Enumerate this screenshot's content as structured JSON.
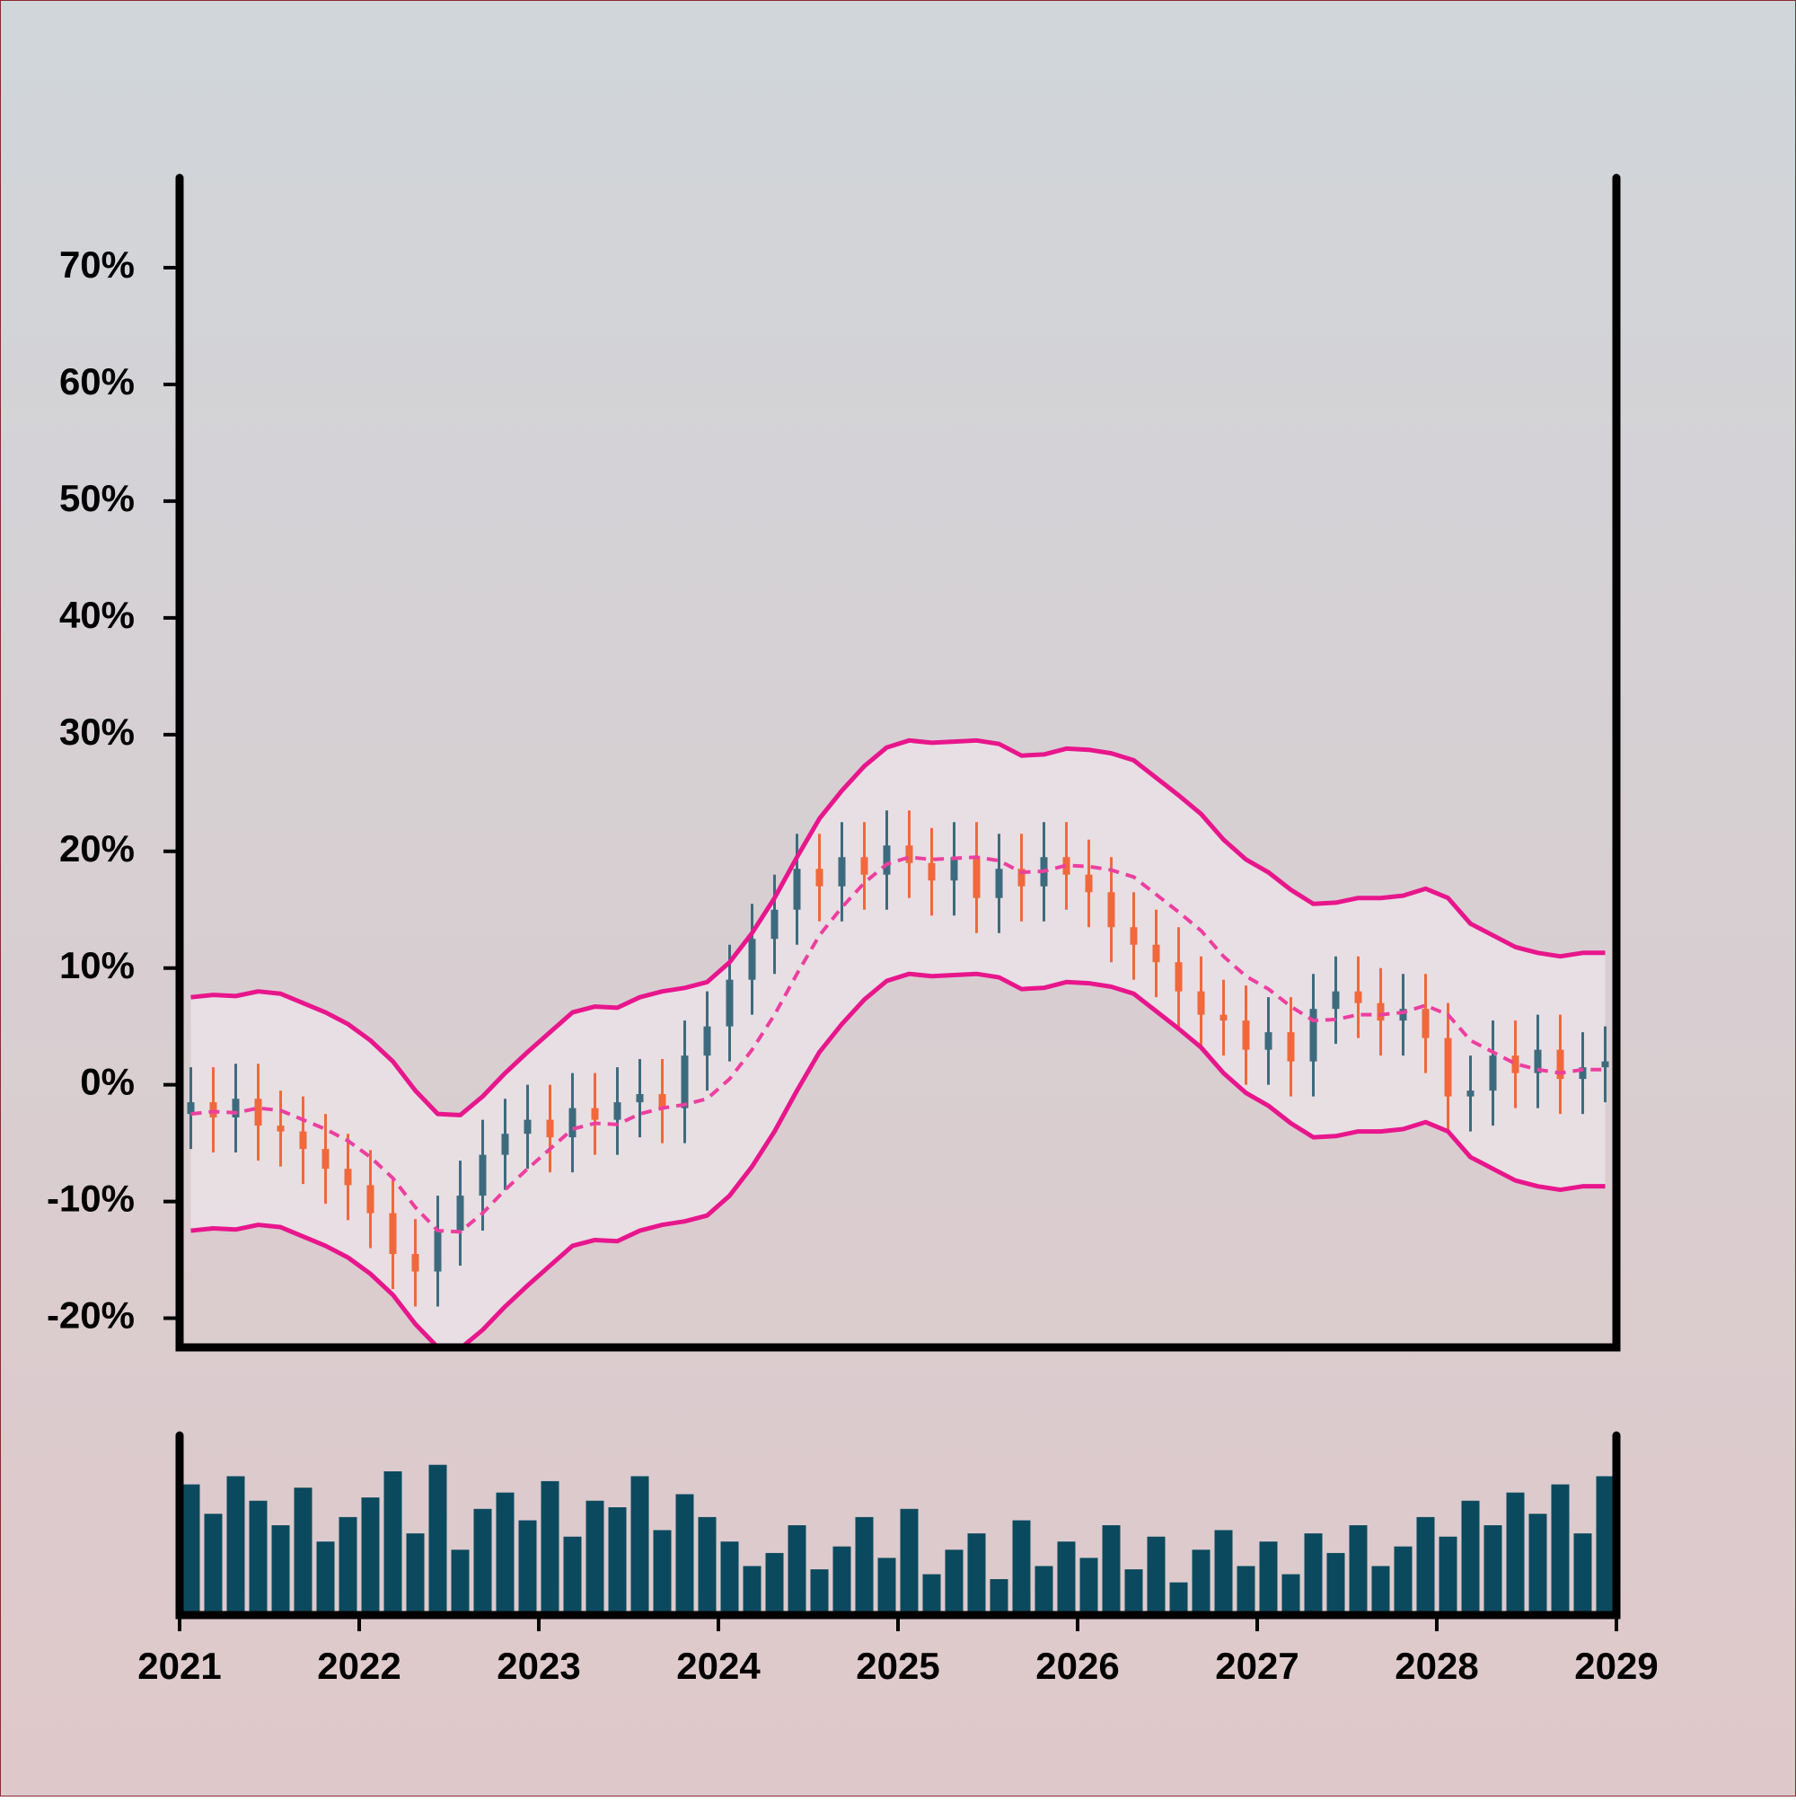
{
  "chart_data": {
    "type": "ohlc",
    "x": [
      2021.0625,
      2021.1875,
      2021.3125,
      2021.4375,
      2021.5625,
      2021.6875,
      2021.8125,
      2021.9375,
      2022.0625,
      2022.1875,
      2022.3125,
      2022.4375,
      2022.5625,
      2022.6875,
      2022.8125,
      2022.9375,
      2023.0625,
      2023.1875,
      2023.3125,
      2023.4375,
      2023.5625,
      2023.6875,
      2023.8125,
      2023.9375,
      2024.0625,
      2024.1875,
      2024.3125,
      2024.4375,
      2024.5625,
      2024.6875,
      2024.8125,
      2024.9375,
      2025.0625,
      2025.1875,
      2025.3125,
      2025.4375,
      2025.5625,
      2025.6875,
      2025.8125,
      2025.9375,
      2026.0625,
      2026.1875,
      2026.3125,
      2026.4375,
      2026.5625,
      2026.6875,
      2026.8125,
      2026.9375,
      2027.0625,
      2027.1875,
      2027.3125,
      2027.4375,
      2027.5625,
      2027.6875,
      2027.8125,
      2027.9375,
      2028.0625,
      2028.1875,
      2028.3125,
      2028.4375,
      2028.5625,
      2028.6875,
      2028.8125,
      2028.9375
    ],
    "open": [
      -2.5,
      -1.5,
      -2.8,
      -1.2,
      -3.5,
      -4.0,
      -5.5,
      -7.2,
      -8.6,
      -11.0,
      -14.5,
      -16.0,
      -12.5,
      -9.5,
      -6.0,
      -4.2,
      -3.0,
      -4.5,
      -2.0,
      -3.0,
      -1.5,
      -0.8,
      -2.0,
      2.5,
      5.0,
      9.0,
      12.5,
      15.0,
      18.5,
      17.0,
      19.5,
      18.0,
      20.5,
      19.0,
      17.5,
      19.5,
      16.0,
      18.5,
      17.0,
      19.5,
      18.0,
      16.5,
      13.5,
      12.0,
      10.5,
      8.0,
      6.0,
      5.5,
      3.0,
      4.5,
      2.0,
      6.5,
      8.0,
      7.0,
      5.5,
      6.5,
      4.0,
      -1.0,
      -0.5,
      2.5,
      1.0,
      3.0,
      0.5,
      1.5
    ],
    "high": [
      1.5,
      1.5,
      1.8,
      1.8,
      -0.5,
      -1.0,
      -2.5,
      -4.2,
      -5.6,
      -8.0,
      -11.5,
      -9.5,
      -6.5,
      -3.0,
      -1.2,
      0.0,
      0.0,
      1.0,
      1.0,
      1.5,
      2.2,
      2.2,
      5.5,
      8.0,
      12.0,
      15.5,
      18.0,
      21.5,
      21.5,
      22.5,
      22.5,
      23.5,
      23.5,
      22.0,
      22.5,
      22.5,
      21.5,
      21.5,
      22.5,
      22.5,
      21.0,
      19.5,
      16.5,
      15.0,
      13.5,
      11.0,
      9.0,
      8.5,
      7.5,
      7.5,
      9.5,
      11.0,
      11.0,
      10.0,
      9.5,
      9.5,
      7.0,
      2.5,
      5.5,
      5.5,
      6.0,
      6.0,
      4.5,
      5.0
    ],
    "low": [
      -5.5,
      -5.8,
      -5.8,
      -6.5,
      -7.0,
      -8.5,
      -10.2,
      -11.6,
      -14.0,
      -17.5,
      -19.0,
      -19.0,
      -15.5,
      -12.5,
      -9.0,
      -7.2,
      -7.5,
      -7.5,
      -6.0,
      -6.0,
      -4.5,
      -5.0,
      -5.0,
      -0.5,
      2.0,
      6.0,
      9.5,
      12.0,
      14.0,
      14.0,
      15.0,
      15.0,
      16.0,
      14.5,
      14.5,
      13.0,
      13.0,
      14.0,
      14.0,
      15.0,
      13.5,
      10.5,
      9.0,
      7.5,
      5.0,
      3.0,
      2.5,
      0.0,
      0.0,
      -1.0,
      -1.0,
      3.5,
      4.0,
      2.5,
      2.5,
      1.0,
      -4.0,
      -4.0,
      -3.5,
      -2.0,
      -2.0,
      -2.5,
      -2.5,
      -1.5
    ],
    "close": [
      -1.5,
      -2.8,
      -1.2,
      -3.5,
      -4.0,
      -5.5,
      -7.2,
      -8.6,
      -11.0,
      -14.5,
      -16.0,
      -12.5,
      -9.5,
      -6.0,
      -4.2,
      -3.0,
      -4.5,
      -2.0,
      -3.0,
      -1.5,
      -0.8,
      -2.0,
      2.5,
      5.0,
      9.0,
      12.5,
      15.0,
      18.5,
      17.0,
      19.5,
      18.0,
      20.5,
      19.0,
      17.5,
      19.5,
      16.0,
      18.5,
      17.0,
      19.5,
      18.0,
      16.5,
      13.5,
      12.0,
      10.5,
      8.0,
      6.0,
      5.5,
      3.0,
      4.5,
      2.0,
      6.5,
      8.0,
      7.0,
      5.5,
      6.5,
      4.0,
      -1.0,
      -0.5,
      2.5,
      1.0,
      3.0,
      0.5,
      1.5,
      2.0
    ],
    "up_color": "#3d6b7e",
    "down_color": "#f0683c",
    "bands": {
      "color": "#e8168c",
      "middle_color": "#ec3f9f",
      "fill": "#ece4ea",
      "upper": [
        7.5,
        7.7,
        7.6,
        8.0,
        7.8,
        7.0,
        6.2,
        5.2,
        3.8,
        2.0,
        -0.5,
        -2.5,
        -2.6,
        -1.0,
        1.0,
        2.8,
        4.5,
        6.2,
        6.7,
        6.6,
        7.5,
        8.0,
        8.3,
        8.8,
        10.5,
        13.0,
        16.0,
        19.5,
        22.8,
        25.2,
        27.3,
        28.9,
        29.5,
        29.3,
        29.4,
        29.5,
        29.2,
        28.2,
        28.3,
        28.8,
        28.7,
        28.4,
        27.8,
        26.3,
        24.8,
        23.2,
        21.0,
        19.3,
        18.2,
        16.7,
        15.5,
        15.6,
        16.0,
        16.0,
        16.2,
        16.8,
        16.0,
        13.8,
        12.8,
        11.8,
        11.3,
        11.0,
        11.3,
        11.3
      ],
      "middle": [
        -2.5,
        -2.3,
        -2.4,
        -2.0,
        -2.2,
        -3.0,
        -3.8,
        -4.8,
        -6.2,
        -8.0,
        -10.5,
        -12.5,
        -12.6,
        -11.0,
        -9.0,
        -7.2,
        -5.5,
        -3.8,
        -3.3,
        -3.4,
        -2.5,
        -2.0,
        -1.7,
        -1.2,
        0.5,
        3.0,
        6.0,
        9.5,
        12.8,
        15.2,
        17.3,
        18.9,
        19.5,
        19.3,
        19.4,
        19.5,
        19.2,
        18.2,
        18.3,
        18.8,
        18.7,
        18.4,
        17.8,
        16.3,
        14.8,
        13.2,
        11.0,
        9.3,
        8.2,
        6.7,
        5.5,
        5.6,
        6.0,
        6.0,
        6.2,
        6.8,
        6.0,
        3.8,
        2.8,
        1.8,
        1.3,
        1.0,
        1.3,
        1.3
      ],
      "lower": [
        -12.5,
        -12.3,
        -12.4,
        -12.0,
        -12.2,
        -13.0,
        -13.8,
        -14.8,
        -16.2,
        -18.0,
        -20.5,
        -22.5,
        -22.6,
        -21.0,
        -19.0,
        -17.2,
        -15.5,
        -13.8,
        -13.3,
        -13.4,
        -12.5,
        -12.0,
        -11.7,
        -11.2,
        -9.5,
        -7.0,
        -4.0,
        -0.5,
        2.8,
        5.2,
        7.3,
        8.9,
        9.5,
        9.3,
        9.4,
        9.5,
        9.2,
        8.2,
        8.3,
        8.8,
        8.7,
        8.4,
        7.8,
        6.3,
        4.8,
        3.2,
        1.0,
        -0.7,
        -1.8,
        -3.3,
        -4.5,
        -4.4,
        -4.0,
        -4.0,
        -3.8,
        -3.2,
        -4.0,
        -6.2,
        -7.2,
        -8.2,
        -8.7,
        -9.0,
        -8.7,
        -8.7
      ]
    },
    "volume": {
      "color": "#0b4a5e",
      "ylim": [
        0,
        110
      ],
      "values": [
        80,
        62,
        85,
        70,
        55,
        78,
        45,
        60,
        72,
        88,
        50,
        92,
        40,
        65,
        75,
        58,
        82,
        48,
        70,
        66,
        85,
        52,
        74,
        60,
        45,
        30,
        38,
        55,
        28,
        42,
        60,
        35,
        65,
        25,
        40,
        50,
        22,
        58,
        30,
        45,
        35,
        55,
        28,
        48,
        20,
        40,
        52,
        30,
        45,
        25,
        50,
        38,
        55,
        30,
        42,
        60,
        48,
        70,
        55,
        75,
        62,
        80,
        50,
        85
      ]
    },
    "xlim": [
      2021,
      2029
    ],
    "xticks": [
      2021,
      2022,
      2023,
      2024,
      2025,
      2026,
      2027,
      2028,
      2029
    ],
    "ylim": [
      -22.5,
      77.7
    ],
    "yticks": [
      {
        "value": -20,
        "label": "-20%"
      },
      {
        "value": -10,
        "label": "-10%"
      },
      {
        "value": 0,
        "label": "0%"
      },
      {
        "value": 10,
        "label": "10%"
      },
      {
        "value": 20,
        "label": "20%"
      },
      {
        "value": 30,
        "label": "30%"
      },
      {
        "value": 40,
        "label": "40%"
      },
      {
        "value": 50,
        "label": "50%"
      },
      {
        "value": 60,
        "label": "60%"
      },
      {
        "value": 70,
        "label": "70%"
      }
    ]
  }
}
